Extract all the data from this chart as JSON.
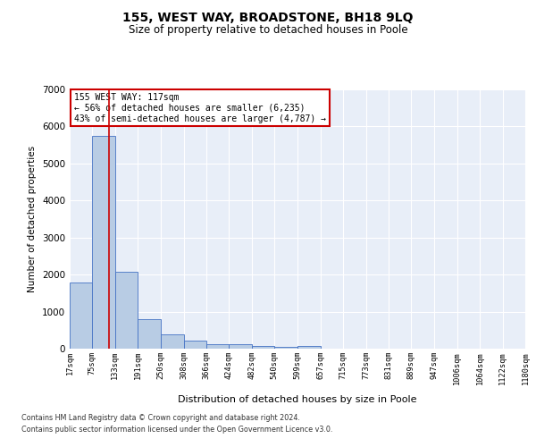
{
  "title": "155, WEST WAY, BROADSTONE, BH18 9LQ",
  "subtitle": "Size of property relative to detached houses in Poole",
  "xlabel": "Distribution of detached houses by size in Poole",
  "ylabel": "Number of detached properties",
  "footnote1": "Contains HM Land Registry data © Crown copyright and database right 2024.",
  "footnote2": "Contains public sector information licensed under the Open Government Licence v3.0.",
  "annotation_title": "155 WEST WAY: 117sqm",
  "annotation_line1": "← 56% of detached houses are smaller (6,235)",
  "annotation_line2": "43% of semi-detached houses are larger (4,787) →",
  "property_size": 117,
  "bin_edges": [
    17,
    75,
    133,
    191,
    250,
    308,
    366,
    424,
    482,
    540,
    599,
    657,
    715,
    773,
    831,
    889,
    947,
    1006,
    1064,
    1122,
    1180
  ],
  "bar_values": [
    1780,
    5750,
    2070,
    800,
    380,
    220,
    110,
    110,
    70,
    40,
    70,
    0,
    0,
    0,
    0,
    0,
    0,
    0,
    0,
    0
  ],
  "bar_color": "#b8cce4",
  "bar_edge_color": "#4472c4",
  "vline_color": "#cc0000",
  "background_color": "#e8eef8",
  "ylim": [
    0,
    7000
  ],
  "yticks": [
    0,
    1000,
    2000,
    3000,
    4000,
    5000,
    6000,
    7000
  ]
}
